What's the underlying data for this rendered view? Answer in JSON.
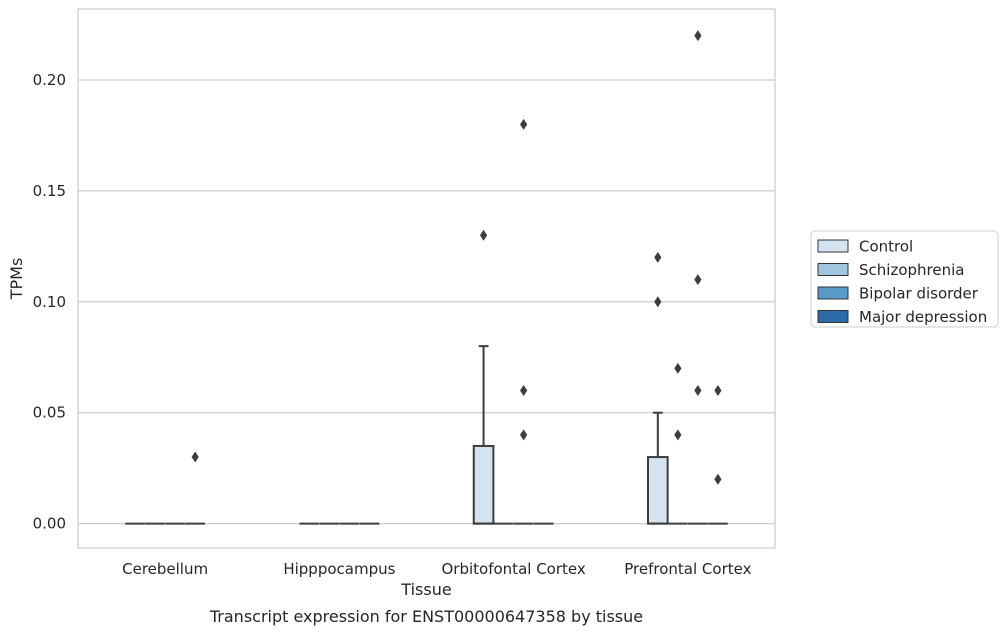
{
  "chart_data": {
    "type": "box",
    "title": "",
    "caption": "Transcript expression for ENST00000647358 by tissue",
    "xlabel": "Tissue",
    "ylabel": "TPMs",
    "ylim": [
      -0.011,
      0.232
    ],
    "yticks": [
      0.0,
      0.05,
      0.1,
      0.15,
      0.2
    ],
    "ytick_labels": [
      "0.00",
      "0.05",
      "0.10",
      "0.15",
      "0.20"
    ],
    "grid": "horizontal",
    "legend_position": "right",
    "categories": [
      "Cerebellum",
      "Hipppocampus",
      "Orbitofontal Cortex",
      "Prefrontal Cortex"
    ],
    "series": [
      {
        "name": "Control",
        "color": "#d4e3f1",
        "boxes": [
          {
            "q1": 0,
            "median": 0,
            "q3": 0,
            "whisker_low": 0,
            "whisker_high": 0,
            "outliers": []
          },
          {
            "q1": 0,
            "median": 0,
            "q3": 0,
            "whisker_low": 0,
            "whisker_high": 0,
            "outliers": []
          },
          {
            "q1": 0,
            "median": 0,
            "q3": 0.035,
            "whisker_low": 0,
            "whisker_high": 0.08,
            "outliers": [
              0.13
            ]
          },
          {
            "q1": 0,
            "median": 0,
            "q3": 0.03,
            "whisker_low": 0,
            "whisker_high": 0.05,
            "outliers": [
              0.1,
              0.12
            ]
          }
        ]
      },
      {
        "name": "Schizophrenia",
        "color": "#9fc6df",
        "boxes": [
          {
            "q1": 0,
            "median": 0,
            "q3": 0,
            "whisker_low": 0,
            "whisker_high": 0,
            "outliers": []
          },
          {
            "q1": 0,
            "median": 0,
            "q3": 0,
            "whisker_low": 0,
            "whisker_high": 0,
            "outliers": []
          },
          {
            "q1": 0,
            "median": 0,
            "q3": 0,
            "whisker_low": 0,
            "whisker_high": 0,
            "outliers": []
          },
          {
            "q1": 0,
            "median": 0,
            "q3": 0,
            "whisker_low": 0,
            "whisker_high": 0,
            "outliers": [
              0.04,
              0.07
            ]
          }
        ]
      },
      {
        "name": "Bipolar disorder",
        "color": "#5b9bc9",
        "boxes": [
          {
            "q1": 0,
            "median": 0,
            "q3": 0,
            "whisker_low": 0,
            "whisker_high": 0,
            "outliers": []
          },
          {
            "q1": 0,
            "median": 0,
            "q3": 0,
            "whisker_low": 0,
            "whisker_high": 0,
            "outliers": []
          },
          {
            "q1": 0,
            "median": 0,
            "q3": 0,
            "whisker_low": 0,
            "whisker_high": 0,
            "outliers": [
              0.04,
              0.06,
              0.18
            ]
          },
          {
            "q1": 0,
            "median": 0,
            "q3": 0,
            "whisker_low": 0,
            "whisker_high": 0,
            "outliers": [
              0.06,
              0.11,
              0.22
            ]
          }
        ]
      },
      {
        "name": "Major depression",
        "color": "#2d6aa8",
        "boxes": [
          {
            "q1": 0,
            "median": 0,
            "q3": 0,
            "whisker_low": 0,
            "whisker_high": 0,
            "outliers": [
              0.03
            ]
          },
          {
            "q1": 0,
            "median": 0,
            "q3": 0,
            "whisker_low": 0,
            "whisker_high": 0,
            "outliers": []
          },
          {
            "q1": 0,
            "median": 0,
            "q3": 0,
            "whisker_low": 0,
            "whisker_high": 0,
            "outliers": []
          },
          {
            "q1": 0,
            "median": 0,
            "q3": 0,
            "whisker_low": 0,
            "whisker_high": 0,
            "outliers": [
              0.02,
              0.06
            ]
          }
        ]
      }
    ]
  }
}
